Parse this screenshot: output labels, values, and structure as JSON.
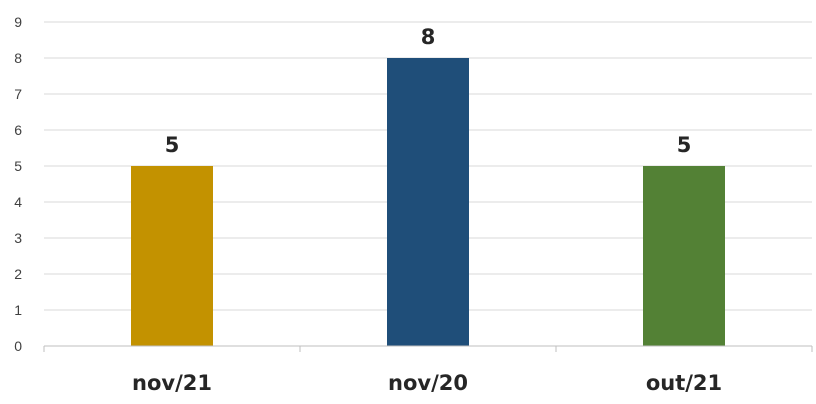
{
  "chart_data": {
    "type": "bar",
    "categories": [
      "nov/21",
      "nov/20",
      "out/21"
    ],
    "values": [
      5,
      8,
      5
    ],
    "colors": [
      "#C39200",
      "#1F4E79",
      "#538135"
    ],
    "ylim": [
      0,
      9
    ],
    "yticks": [
      "0",
      "1",
      "2",
      "3",
      "4",
      "5",
      "6",
      "7",
      "8",
      "9"
    ],
    "data_labels": [
      "5",
      "8",
      "5"
    ],
    "grid": true,
    "legend": false,
    "title": "",
    "xlabel": "",
    "ylabel": ""
  }
}
